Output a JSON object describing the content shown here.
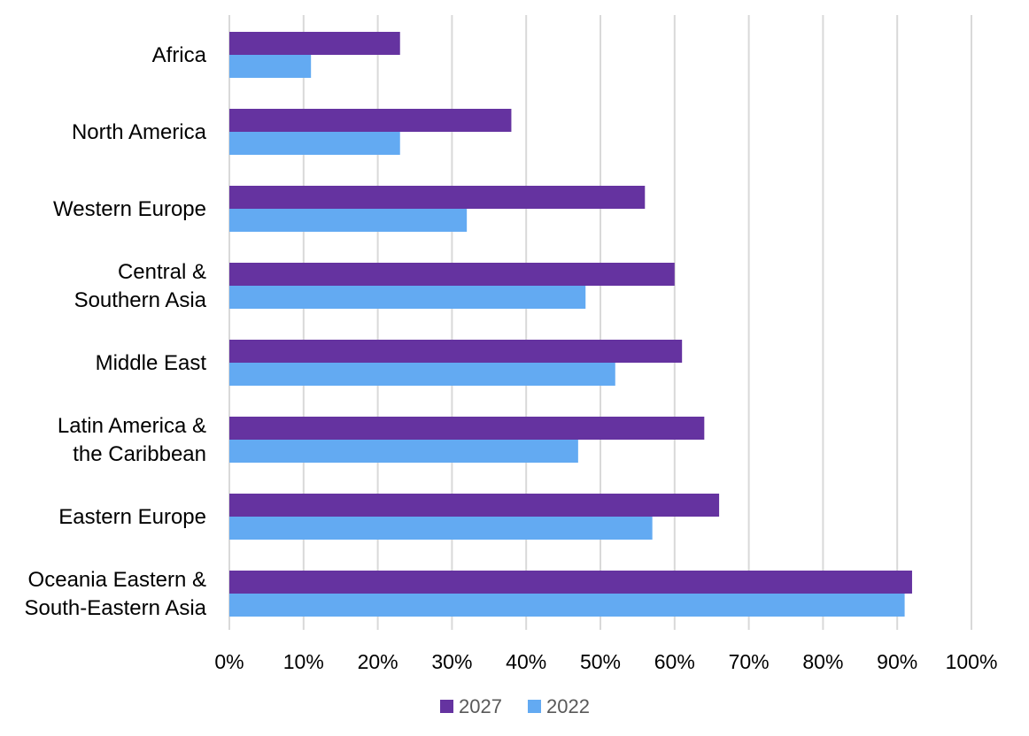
{
  "chart_data": {
    "type": "bar",
    "orientation": "horizontal",
    "categories": [
      [
        "Africa"
      ],
      [
        "North America"
      ],
      [
        "Western Europe"
      ],
      [
        "Central &",
        "Southern Asia"
      ],
      [
        "Middle East"
      ],
      [
        "Latin America &",
        "the Caribbean"
      ],
      [
        "Eastern Europe"
      ],
      [
        "Oceania Eastern &",
        "South-Eastern Asia"
      ]
    ],
    "series": [
      {
        "name": "2027",
        "color": "#6533a0",
        "values": [
          0.23,
          0.38,
          0.56,
          0.6,
          0.61,
          0.64,
          0.66,
          0.92
        ]
      },
      {
        "name": "2022",
        "color": "#63aaf2",
        "values": [
          0.11,
          0.23,
          0.32,
          0.48,
          0.52,
          0.47,
          0.57,
          0.91
        ]
      }
    ],
    "xlim": [
      0,
      1
    ],
    "xticks": [
      "0%",
      "10%",
      "20%",
      "30%",
      "40%",
      "50%",
      "60%",
      "70%",
      "80%",
      "90%",
      "100%"
    ],
    "grid": "vertical",
    "legend_position": "bottom",
    "title": "",
    "xlabel": "",
    "ylabel": ""
  }
}
